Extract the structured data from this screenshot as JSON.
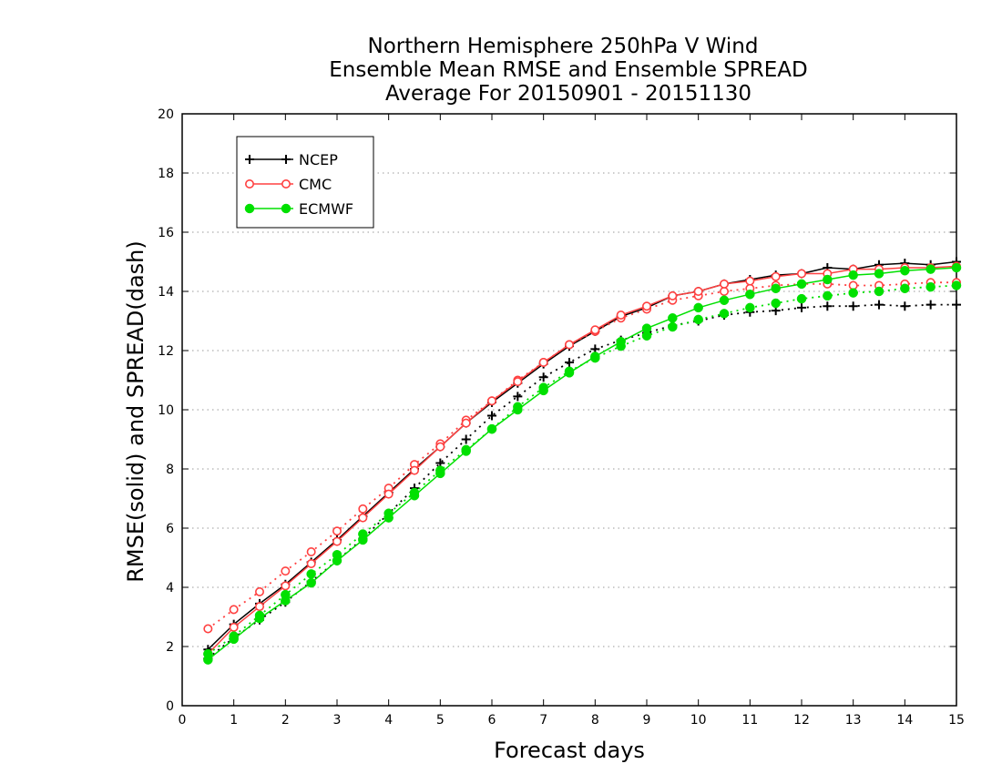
{
  "chart_data": {
    "type": "line",
    "title": [
      "Northern Hemisphere 250hPa V Wind",
      "Ensemble Mean RMSE and Ensemble SPREAD",
      "Average For 20150901 - 20151130"
    ],
    "xlabel": "Forecast days",
    "ylabel": "RMSE(solid) and SPREAD(dash)",
    "xlim": [
      0,
      15
    ],
    "ylim": [
      0,
      20
    ],
    "xticks": [
      "0",
      "1",
      "2",
      "3",
      "4",
      "5",
      "6",
      "7",
      "8",
      "9",
      "10",
      "11",
      "12",
      "13",
      "14",
      "15"
    ],
    "yticks": [
      "0",
      "2",
      "4",
      "6",
      "8",
      "10",
      "12",
      "14",
      "16",
      "18",
      "20"
    ],
    "grid": "horizontal dotted",
    "legend_position": "top-left",
    "x": [
      0.5,
      1,
      1.5,
      2,
      2.5,
      3,
      3.5,
      4,
      4.5,
      5,
      5.5,
      6,
      6.5,
      7,
      7.5,
      8,
      8.5,
      9,
      9.5,
      10,
      10.5,
      11,
      11.5,
      12,
      12.5,
      13,
      13.5,
      14,
      14.5,
      15
    ],
    "series": [
      {
        "name": "NCEP",
        "color": "#000000",
        "marker": "plus",
        "rmse": [
          1.9,
          2.75,
          3.45,
          4.1,
          4.85,
          5.6,
          6.4,
          7.2,
          8.0,
          8.75,
          9.55,
          10.25,
          10.9,
          11.55,
          12.15,
          12.65,
          13.15,
          13.45,
          13.85,
          14.0,
          14.25,
          14.4,
          14.55,
          14.6,
          14.8,
          14.75,
          14.9,
          14.95,
          14.9,
          15.0
        ],
        "spread": [
          1.6,
          2.3,
          2.9,
          3.5,
          4.2,
          4.9,
          5.65,
          6.5,
          7.35,
          8.2,
          9.0,
          9.8,
          10.45,
          11.1,
          11.6,
          12.05,
          12.35,
          12.6,
          12.85,
          13.0,
          13.2,
          13.3,
          13.35,
          13.45,
          13.5,
          13.5,
          13.55,
          13.5,
          13.55,
          13.55
        ]
      },
      {
        "name": "CMC",
        "color": "#ff4040",
        "marker": "open-circle",
        "rmse": [
          1.75,
          2.65,
          3.35,
          4.05,
          4.8,
          5.55,
          6.35,
          7.15,
          7.95,
          8.75,
          9.55,
          10.3,
          10.95,
          11.6,
          12.2,
          12.7,
          13.2,
          13.5,
          13.85,
          14.0,
          14.25,
          14.35,
          14.5,
          14.6,
          14.6,
          14.75,
          14.75,
          14.8,
          14.8,
          14.85
        ],
        "spread": [
          2.6,
          3.25,
          3.85,
          4.55,
          5.2,
          5.9,
          6.65,
          7.35,
          8.15,
          8.85,
          9.65,
          10.3,
          11.0,
          11.6,
          12.2,
          12.65,
          13.1,
          13.4,
          13.7,
          13.85,
          14.0,
          14.1,
          14.2,
          14.25,
          14.25,
          14.2,
          14.2,
          14.25,
          14.3,
          14.3
        ]
      },
      {
        "name": "ECMWF",
        "color": "#00e000",
        "marker": "filled-circle",
        "rmse": [
          1.55,
          2.25,
          2.95,
          3.55,
          4.15,
          4.9,
          5.6,
          6.35,
          7.1,
          7.85,
          8.6,
          9.35,
          10.0,
          10.65,
          11.25,
          11.8,
          12.3,
          12.75,
          13.1,
          13.45,
          13.7,
          13.9,
          14.1,
          14.25,
          14.4,
          14.55,
          14.6,
          14.7,
          14.75,
          14.8
        ],
        "spread": [
          1.75,
          2.35,
          3.05,
          3.75,
          4.45,
          5.1,
          5.8,
          6.5,
          7.2,
          7.95,
          8.65,
          9.35,
          10.1,
          10.75,
          11.3,
          11.75,
          12.15,
          12.5,
          12.8,
          13.05,
          13.25,
          13.45,
          13.6,
          13.75,
          13.85,
          13.95,
          14.0,
          14.1,
          14.15,
          14.2
        ]
      }
    ]
  }
}
